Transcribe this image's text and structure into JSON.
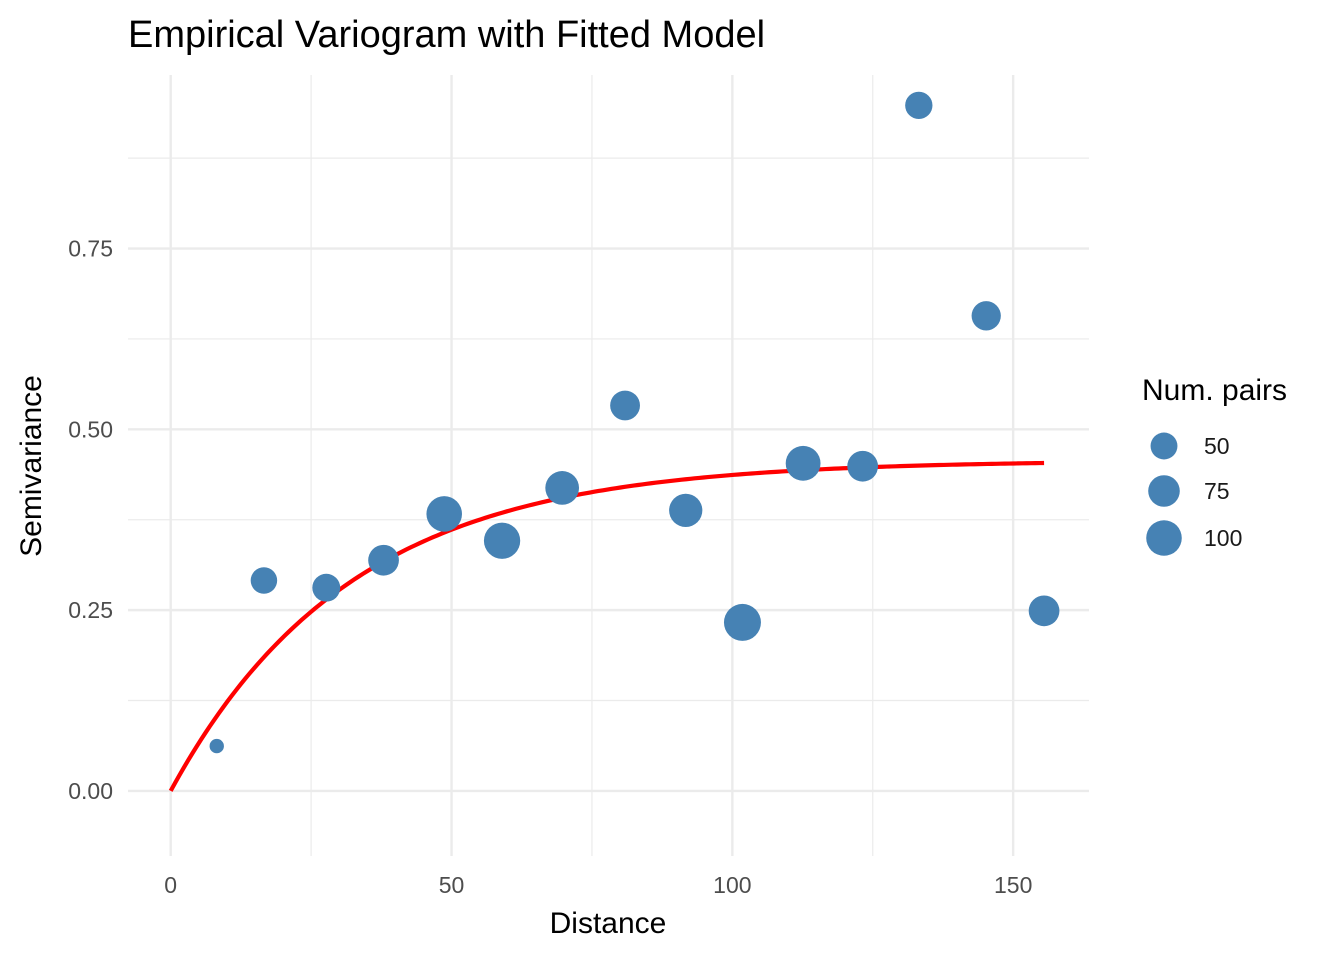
{
  "chart_data": {
    "type": "scatter",
    "title": "Empirical Variogram with Fitted Model",
    "xlabel": "Distance",
    "ylabel": "Semivariance",
    "xlim": [
      -7.6,
      163.5
    ],
    "ylim": [
      -0.09,
      0.99
    ],
    "x_ticks": [
      0,
      50,
      100,
      150
    ],
    "x_tick_labels": [
      "0",
      "50",
      "100",
      "150"
    ],
    "y_ticks": [
      0,
      0.25,
      0.5,
      0.75
    ],
    "y_tick_labels": [
      "0.00",
      "0.25",
      "0.50",
      "0.75"
    ],
    "grid": true,
    "point_color": "#4682B4",
    "points": [
      {
        "x": 8.2,
        "y": 0.062,
        "np": 8
      },
      {
        "x": 16.6,
        "y": 0.291,
        "np": 48
      },
      {
        "x": 27.7,
        "y": 0.281,
        "np": 55
      },
      {
        "x": 37.9,
        "y": 0.319,
        "np": 70
      },
      {
        "x": 48.7,
        "y": 0.383,
        "np": 100
      },
      {
        "x": 59.0,
        "y": 0.346,
        "np": 105
      },
      {
        "x": 69.7,
        "y": 0.419,
        "np": 88
      },
      {
        "x": 80.9,
        "y": 0.533,
        "np": 65
      },
      {
        "x": 91.7,
        "y": 0.388,
        "np": 85
      },
      {
        "x": 101.8,
        "y": 0.233,
        "np": 110
      },
      {
        "x": 112.6,
        "y": 0.453,
        "np": 95
      },
      {
        "x": 123.2,
        "y": 0.449,
        "np": 70
      },
      {
        "x": 133.2,
        "y": 0.948,
        "np": 52
      },
      {
        "x": 145.2,
        "y": 0.657,
        "np": 62
      },
      {
        "x": 155.5,
        "y": 0.249,
        "np": 70
      }
    ],
    "fitted_model": {
      "model": "exponential",
      "color": "#FF0000",
      "nugget": 0,
      "sill": 0.457,
      "range": 32,
      "x_max": 155.5
    },
    "legend": {
      "title": "Num. pairs",
      "position": "right",
      "entries": [
        {
          "label": "50",
          "np": 50
        },
        {
          "label": "75",
          "np": 75
        },
        {
          "label": "100",
          "np": 100
        }
      ]
    }
  }
}
